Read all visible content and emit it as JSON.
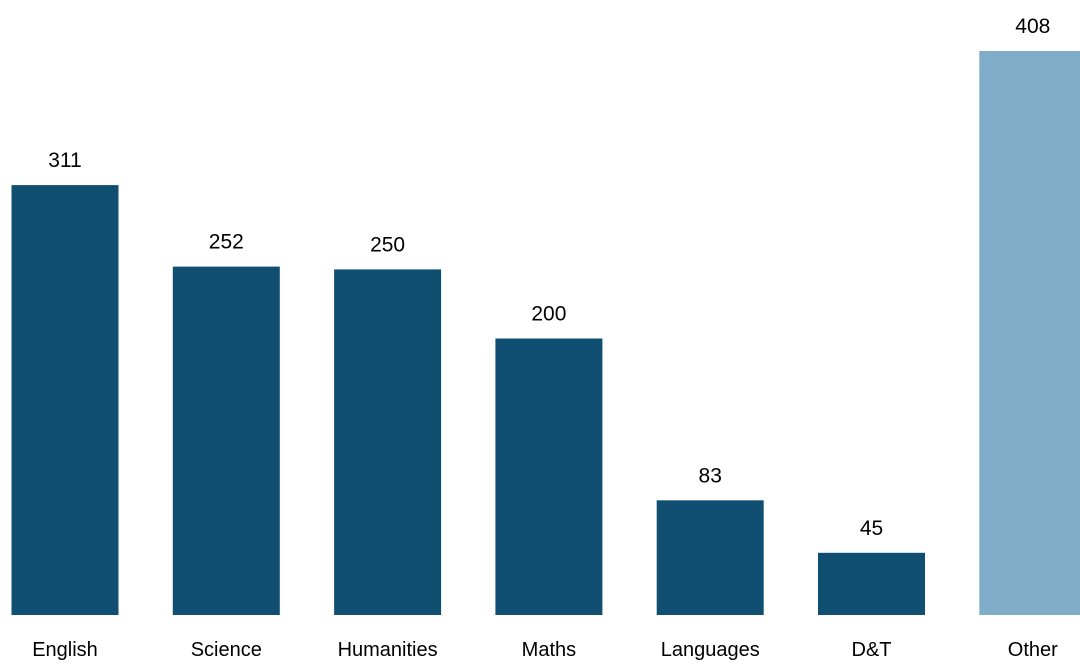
{
  "chart_data": {
    "type": "bar",
    "categories": [
      "English",
      "Science",
      "Humanities",
      "Maths",
      "Languages",
      "D&T",
      "Other"
    ],
    "values": [
      311,
      252,
      250,
      200,
      83,
      45,
      408
    ],
    "data_labels": [
      "311",
      "252",
      "250",
      "200",
      "83",
      "45",
      "408"
    ],
    "colors": [
      "#114f72",
      "#114f72",
      "#114f72",
      "#114f72",
      "#114f72",
      "#114f72",
      "#80aec8"
    ],
    "ylim": [
      0,
      408
    ],
    "grid": false,
    "legend": "none"
  }
}
